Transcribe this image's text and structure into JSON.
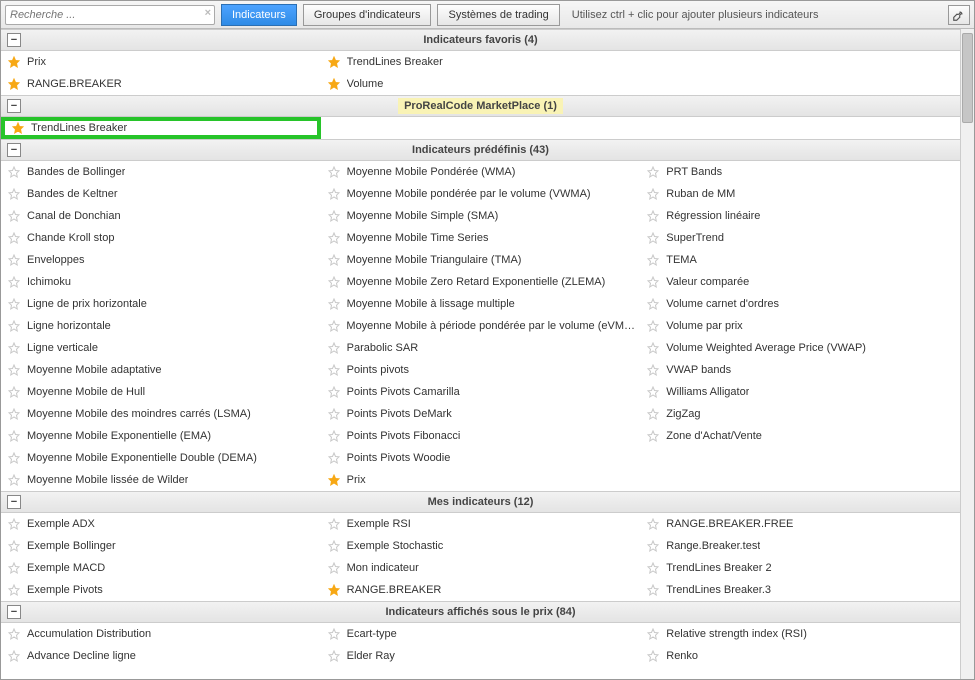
{
  "toolbar": {
    "search_placeholder": "Recherche ...",
    "tabs": {
      "indicateurs": "Indicateurs",
      "groupes": "Groupes d'indicateurs",
      "systemes": "Systèmes de trading"
    },
    "hint": "Utilisez ctrl + clic pour ajouter plusieurs indicateurs"
  },
  "colors": {
    "star_fav": "#f7a814",
    "star_empty": "#c8c8c8",
    "highlight_bg": "#f9f3b5",
    "green_box": "#27c42a"
  },
  "sections": {
    "favoris": {
      "title": "Indicateurs favoris (4)",
      "items": [
        {
          "label": "Prix",
          "fav": true
        },
        {
          "label": "TrendLines Breaker",
          "fav": true
        },
        {
          "label": "RANGE.BREAKER",
          "fav": true
        },
        {
          "label": "Volume",
          "fav": true
        }
      ]
    },
    "marketplace": {
      "title": "ProRealCode MarketPlace (1)",
      "items": [
        {
          "label": "TrendLines Breaker",
          "fav": true
        }
      ]
    },
    "predefinis": {
      "title": "Indicateurs prédéfinis (43)",
      "col1": [
        {
          "label": "Bandes de Bollinger"
        },
        {
          "label": "Bandes de Keltner"
        },
        {
          "label": "Canal de Donchian"
        },
        {
          "label": "Chande Kroll stop"
        },
        {
          "label": "Enveloppes"
        },
        {
          "label": "Ichimoku"
        },
        {
          "label": "Ligne de prix horizontale"
        },
        {
          "label": "Ligne horizontale"
        },
        {
          "label": "Ligne verticale"
        },
        {
          "label": "Moyenne Mobile adaptative"
        },
        {
          "label": "Moyenne Mobile de Hull"
        },
        {
          "label": "Moyenne Mobile des moindres carrés (LSMA)"
        },
        {
          "label": "Moyenne Mobile Exponentielle (EMA)"
        },
        {
          "label": "Moyenne Mobile Exponentielle Double (DEMA)"
        },
        {
          "label": "Moyenne Mobile lissée de Wilder"
        }
      ],
      "col2": [
        {
          "label": "Moyenne Mobile Pondérée (WMA)"
        },
        {
          "label": "Moyenne Mobile pondérée par le volume (VWMA)"
        },
        {
          "label": "Moyenne Mobile Simple (SMA)"
        },
        {
          "label": "Moyenne Mobile Time Series"
        },
        {
          "label": "Moyenne Mobile Triangulaire (TMA)"
        },
        {
          "label": "Moyenne Mobile Zero Retard Exponentielle (ZLEMA)"
        },
        {
          "label": "Moyenne Mobile à lissage multiple"
        },
        {
          "label": "Moyenne Mobile à période pondérée par le volume (eVMWA)"
        },
        {
          "label": "Parabolic SAR"
        },
        {
          "label": "Points pivots"
        },
        {
          "label": "Points Pivots Camarilla"
        },
        {
          "label": "Points Pivots DeMark"
        },
        {
          "label": "Points Pivots Fibonacci"
        },
        {
          "label": "Points Pivots Woodie"
        },
        {
          "label": "Prix",
          "fav": true
        }
      ],
      "col3": [
        {
          "label": "PRT Bands"
        },
        {
          "label": "Ruban de MM"
        },
        {
          "label": "Régression linéaire"
        },
        {
          "label": "SuperTrend"
        },
        {
          "label": "TEMA"
        },
        {
          "label": "Valeur comparée"
        },
        {
          "label": "Volume carnet d'ordres"
        },
        {
          "label": "Volume par prix"
        },
        {
          "label": "Volume Weighted Average Price (VWAP)"
        },
        {
          "label": "VWAP bands"
        },
        {
          "label": "Williams Alligator"
        },
        {
          "label": "ZigZag"
        },
        {
          "label": "Zone d'Achat/Vente"
        }
      ]
    },
    "mes": {
      "title": "Mes indicateurs (12)",
      "col1": [
        {
          "label": "Exemple ADX"
        },
        {
          "label": "Exemple Bollinger"
        },
        {
          "label": "Exemple MACD"
        },
        {
          "label": "Exemple Pivots"
        }
      ],
      "col2": [
        {
          "label": "Exemple RSI"
        },
        {
          "label": "Exemple Stochastic"
        },
        {
          "label": "Mon indicateur"
        },
        {
          "label": "RANGE.BREAKER",
          "fav": true
        }
      ],
      "col3": [
        {
          "label": "RANGE.BREAKER.FREE"
        },
        {
          "label": "Range.Breaker.test"
        },
        {
          "label": "TrendLines Breaker 2"
        },
        {
          "label": "TrendLines Breaker.3"
        }
      ]
    },
    "sous_prix": {
      "title": "Indicateurs affichés sous le prix (84)",
      "col1": [
        {
          "label": "Accumulation Distribution"
        },
        {
          "label": "Advance Decline ligne"
        }
      ],
      "col2": [
        {
          "label": "Ecart-type"
        },
        {
          "label": "Elder Ray"
        }
      ],
      "col3": [
        {
          "label": "Relative strength index (RSI)"
        },
        {
          "label": "Renko"
        }
      ]
    }
  }
}
